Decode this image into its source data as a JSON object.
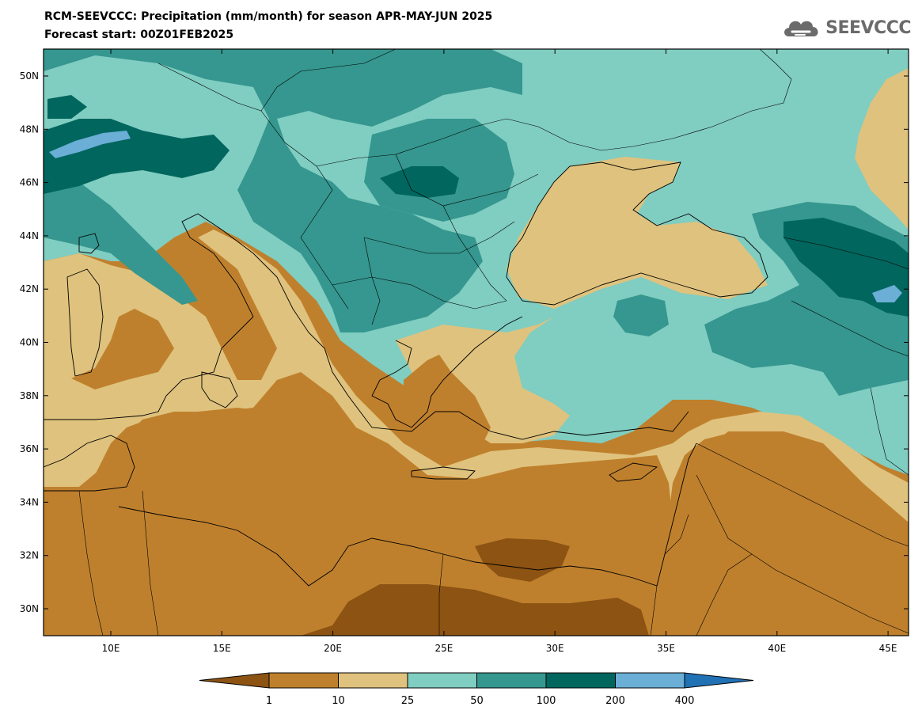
{
  "header": {
    "title": "RCM-SEEVCCC: Precipitation (mm/month) for season APR-MAY-JUN 2025",
    "subtitle": "Forecast start: 00Z01FEB2025"
  },
  "logo": {
    "text": "SEEVCCC",
    "icon": "cloud-icon"
  },
  "axes": {
    "lat_labels": [
      "50N",
      "48N",
      "46N",
      "44N",
      "42N",
      "40N",
      "38N",
      "36N",
      "34N",
      "32N",
      "30N"
    ],
    "lon_labels": [
      "10E",
      "15E",
      "20E",
      "25E",
      "30E",
      "35E",
      "40E",
      "45E"
    ]
  },
  "colorbar": {
    "labels": [
      "1",
      "10",
      "25",
      "50",
      "100",
      "200",
      "400"
    ],
    "colors": [
      "#8c5312",
      "#bf802d",
      "#dfc27d",
      "#80cdc1",
      "#35978f",
      "#01665e",
      "#6baed6",
      "#2171b5"
    ]
  }
}
